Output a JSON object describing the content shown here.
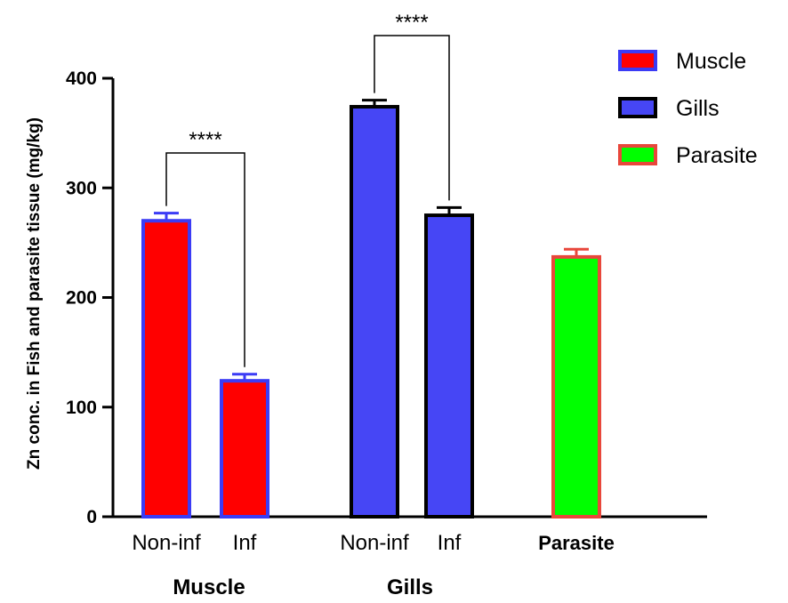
{
  "chart_data": {
    "type": "bar",
    "title": "",
    "ylabel": "Zn conc. in Fish and parasite tissue (mg/kg)",
    "ylim": [
      0,
      400
    ],
    "yticks": [
      "0",
      "100",
      "200",
      "300",
      "400"
    ],
    "groups": [
      {
        "label": "Muscle",
        "bars": [
          {
            "label": "Non-inf",
            "value": 270,
            "error": 7,
            "fill": "#ff0000",
            "stroke": "#3b3bf5"
          },
          {
            "label": "Inf",
            "value": 124,
            "error": 6,
            "fill": "#ff0000",
            "stroke": "#3b3bf5"
          }
        ]
      },
      {
        "label": "Gills",
        "bars": [
          {
            "label": "Non-inf",
            "value": 374,
            "error": 6,
            "fill": "#4646f5",
            "stroke": "#000000"
          },
          {
            "label": "Inf",
            "value": 275,
            "error": 7,
            "fill": "#4646f5",
            "stroke": "#000000"
          }
        ]
      },
      {
        "label": "",
        "bars": [
          {
            "label": "Parasite",
            "value": 237,
            "error": 7,
            "fill": "#00ff00",
            "stroke": "#e8473b"
          }
        ]
      }
    ],
    "significance": [
      {
        "text": "****",
        "group": 0
      },
      {
        "text": "****",
        "group": 1
      }
    ],
    "legend": {
      "position": "top-right",
      "entries": [
        {
          "name": "Muscle",
          "fill": "#ff0000",
          "stroke": "#3b3bf5"
        },
        {
          "name": "Gills",
          "fill": "#4646f5",
          "stroke": "#000000"
        },
        {
          "name": "Parasite",
          "fill": "#00ff00",
          "stroke": "#e8473b"
        }
      ]
    }
  }
}
